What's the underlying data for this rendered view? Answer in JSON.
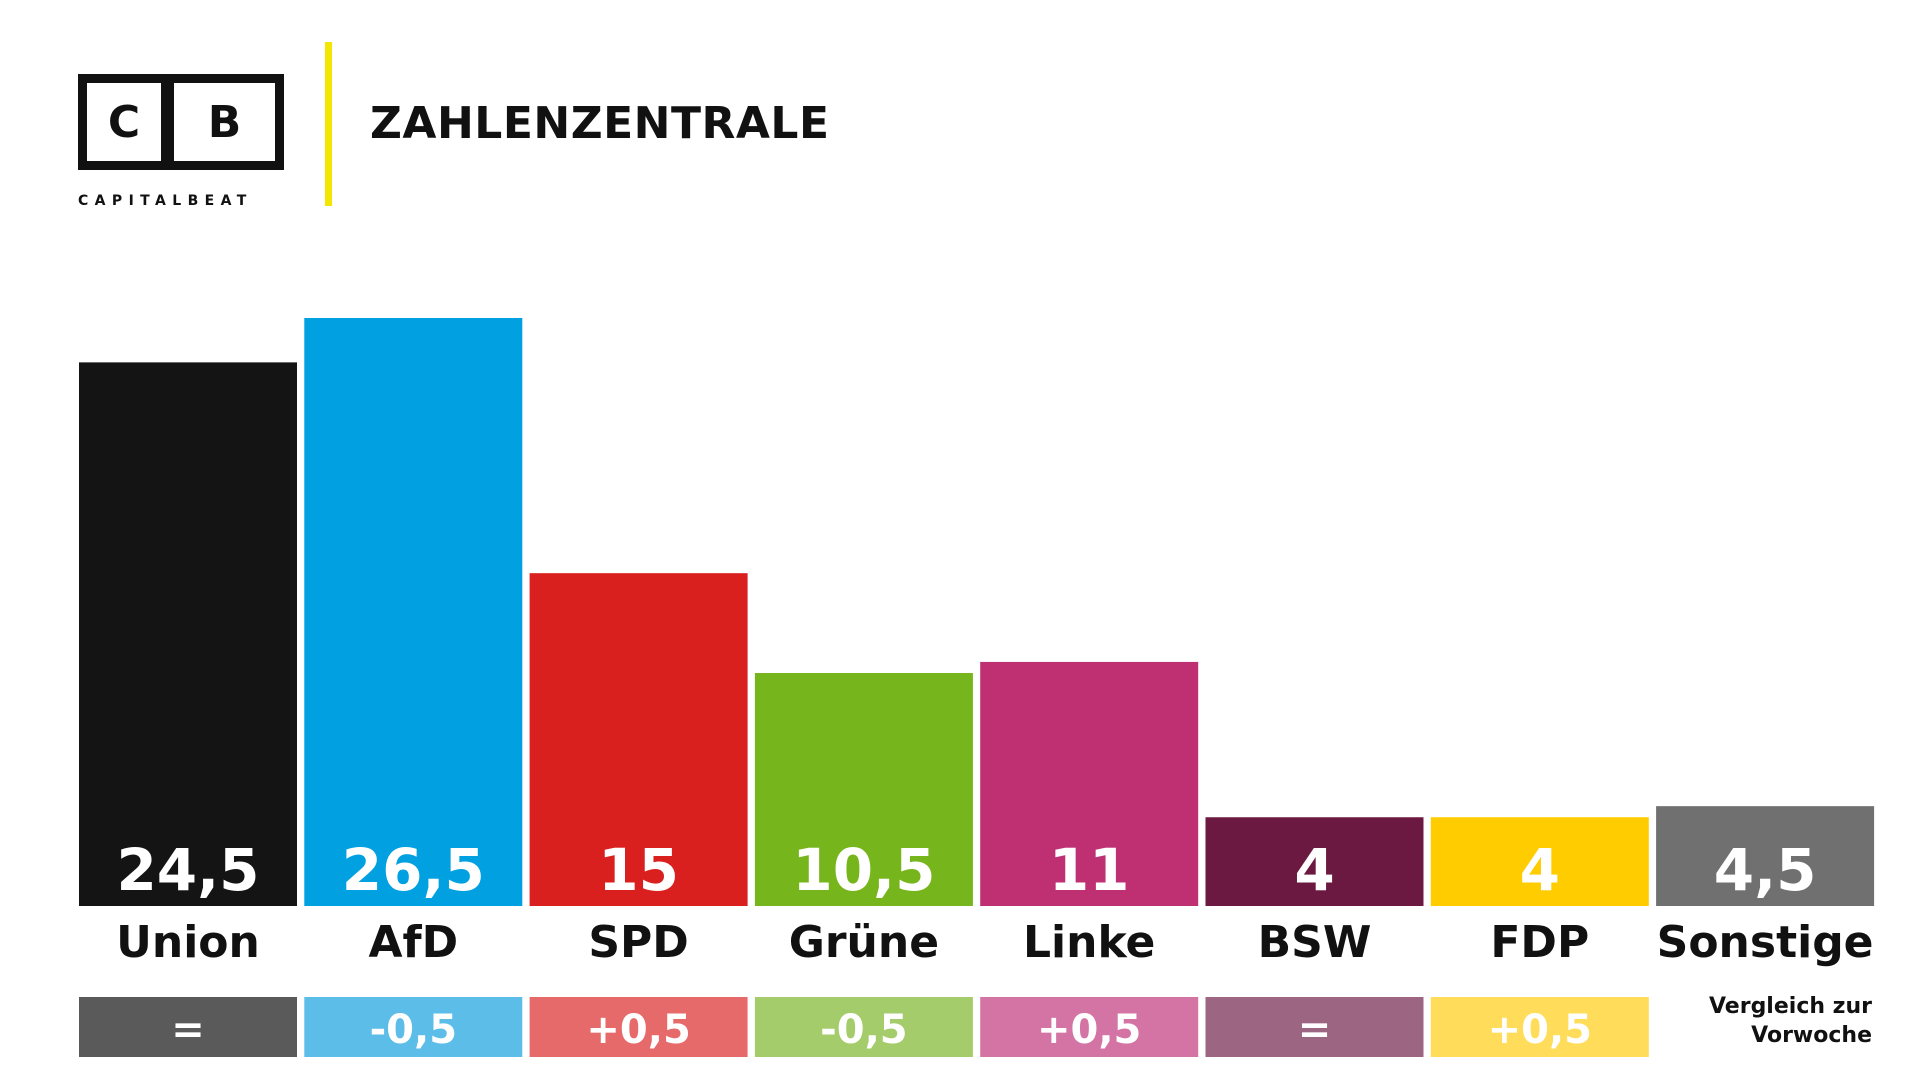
{
  "header": {
    "logo_left": "C",
    "logo_right": "B",
    "logo_word": "CAPITALBEAT",
    "title": "ZAHLENZENTRALE"
  },
  "colors": {
    "divider": "#f4e600",
    "text_dark": "#111111"
  },
  "chart_data": {
    "type": "bar",
    "categories": [
      "Union",
      "AfD",
      "SPD",
      "Grüne",
      "Linke",
      "BSW",
      "FDP",
      "Sonstige"
    ],
    "values": [
      24.5,
      26.5,
      15,
      10.5,
      11,
      4,
      4,
      4.5
    ],
    "value_labels": [
      "24,5",
      "26,5",
      "15",
      "10,5",
      "11",
      "4",
      "4",
      "4,5"
    ],
    "changes": [
      "=",
      "-0,5",
      "+0,5",
      "-0,5",
      "+0,5",
      "=",
      "+0,5",
      null
    ],
    "bar_colors": [
      "#141414",
      "#00a0e1",
      "#d9201f",
      "#76b51b",
      "#bf3073",
      "#6b1940",
      "#ffcc00",
      "#707070"
    ],
    "change_colors": [
      "#5a5a5a",
      "#5bbde8",
      "#e66a6a",
      "#a5cc6b",
      "#d474a4",
      "#9c6683",
      "#ffdc5a",
      null
    ],
    "change_note": [
      "Vergleich zur",
      "Vorwoche"
    ],
    "unit": "%",
    "ylim": [
      0,
      26.5
    ]
  }
}
